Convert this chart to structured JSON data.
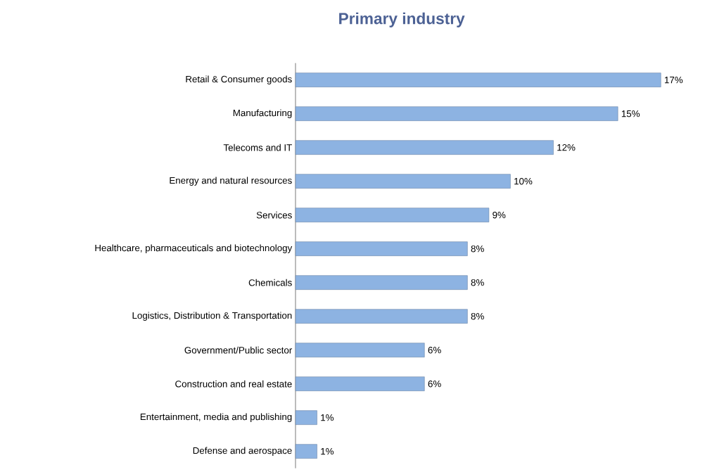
{
  "chart_data": {
    "type": "bar",
    "orientation": "horizontal",
    "title": "Primary industry",
    "categories": [
      "Retail & Consumer goods",
      "Manufacturing",
      "Telecoms and IT",
      "Energy and natural resources",
      "Services",
      "Healthcare, pharmaceuticals and biotechnology",
      "Chemicals",
      "Logistics, Distribution & Transportation",
      "Government/Public sector",
      "Construction and real estate",
      "Entertainment, media and publishing",
      "Defense and aerospace"
    ],
    "values": [
      17,
      15,
      12,
      10,
      9,
      8,
      8,
      8,
      6,
      6,
      1,
      1
    ],
    "value_labels": [
      "17%",
      "15%",
      "12%",
      "10%",
      "9%",
      "8%",
      "8%",
      "8%",
      "6%",
      "6%",
      "1%",
      "1%"
    ],
    "color": "#8db3e2"
  }
}
